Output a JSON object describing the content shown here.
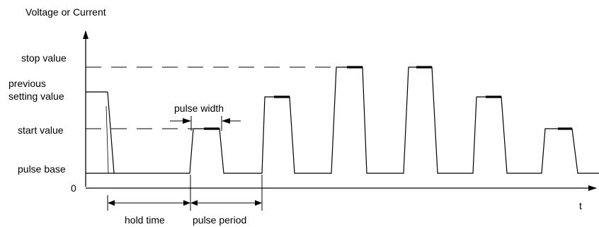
{
  "diagram": {
    "y_axis_label": "Voltage or Current",
    "x_axis_label": "t",
    "levels": {
      "stop_value": "stop value",
      "previous_setting_value_line1": "previous",
      "previous_setting_value_line2": "setting value",
      "start_value": "start value",
      "pulse_base": "pulse base",
      "zero": "0"
    },
    "annotations": {
      "pulse_width": "pulse width",
      "hold_time": "hold time",
      "pulse_period": "pulse period"
    }
  }
}
